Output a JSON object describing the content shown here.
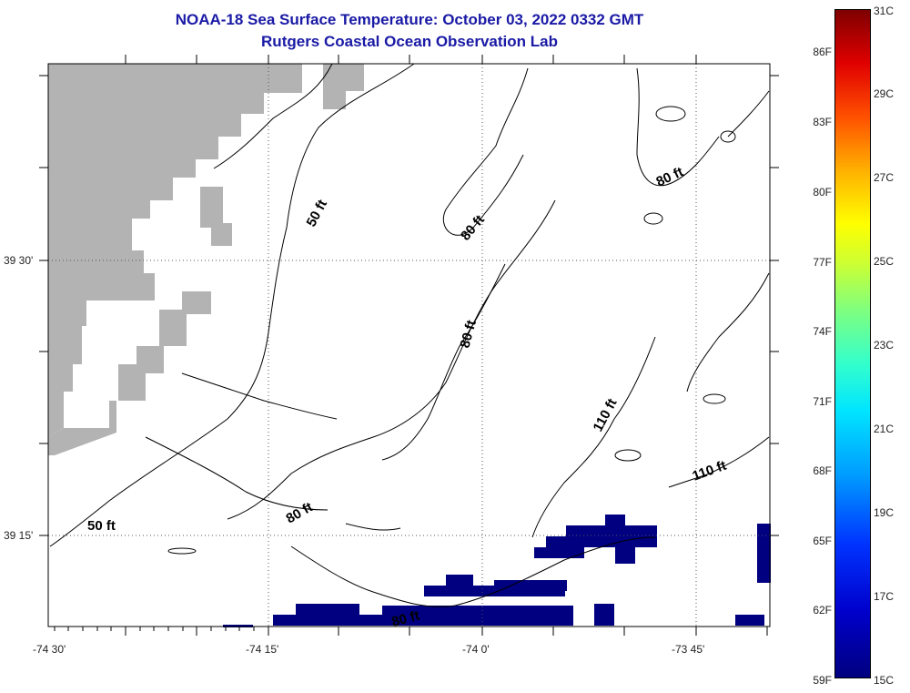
{
  "title": {
    "line1": "NOAA-18 Sea Surface Temperature:  October 03, 2022 0332 GMT",
    "line2": "Rutgers Coastal Ocean Observation Lab"
  },
  "map": {
    "lat_labels": [
      "39 30'",
      "39 15'"
    ],
    "lon_labels": [
      "-74 30'",
      "-74 15'",
      "-74 0'",
      "-73 45'"
    ],
    "contour_labels": [
      "50 ft",
      "50 ft",
      "80 ft",
      "80 ft",
      "80 ft",
      "80 ft",
      "80 ft",
      "110 ft",
      "110 ft"
    ],
    "land_color": "#b3b3b3",
    "sst_pixel_color": "#000080",
    "contour_color": "#000000"
  },
  "colorbar": {
    "fahrenheit": [
      "86F",
      "83F",
      "80F",
      "77F",
      "74F",
      "71F",
      "68F",
      "65F",
      "62F",
      "59F"
    ],
    "celsius": [
      "31C",
      "29C",
      "27C",
      "25C",
      "23C",
      "21C",
      "19C",
      "17C",
      "15C"
    ],
    "min_color": "#00007f",
    "max_color": "#7f0000"
  }
}
